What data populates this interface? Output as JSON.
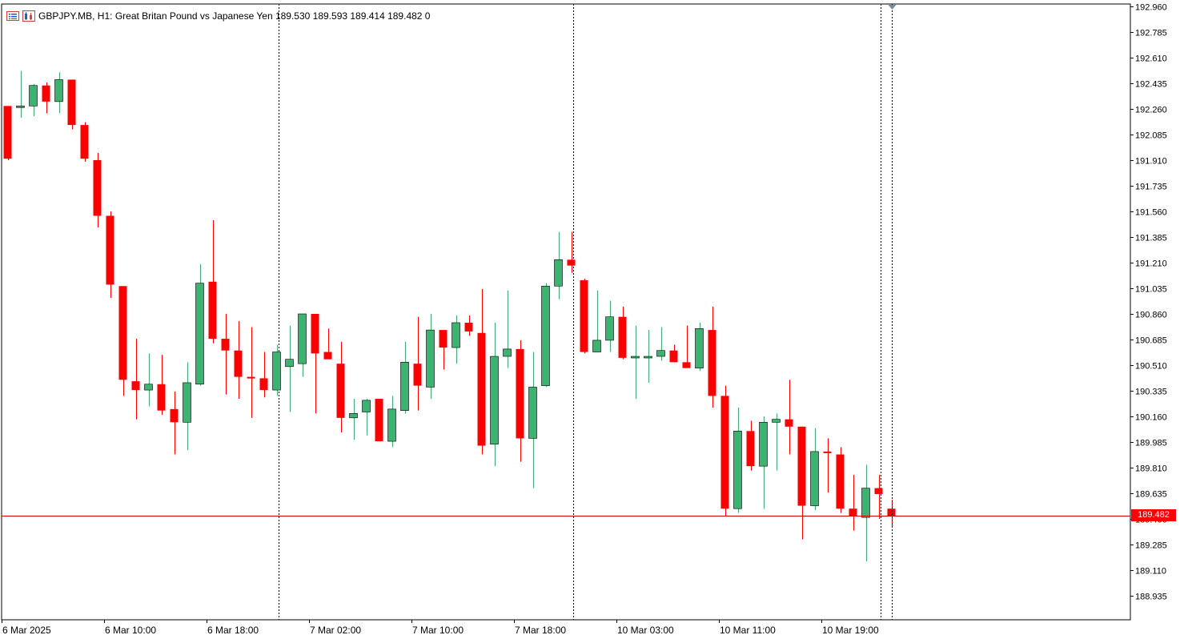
{
  "header": {
    "symbol_line": "GBPJPY.MB, H1:  Great Britan Pound vs Japanese Yen  189.530 189.593 189.414 189.482  0",
    "icons": [
      "list-icon",
      "chart-icon"
    ]
  },
  "current_price": "189.482",
  "colors": {
    "bull": "#3cb371",
    "bear": "#ff0000",
    "price_line": "#cc0000",
    "axis": "#000000"
  },
  "chart_data": {
    "type": "candlestick",
    "symbol": "GBPJPY.MB",
    "timeframe": "H1",
    "ylim": [
      188.85,
      193.0
    ],
    "price_ticks": [
      "192.960",
      "192.785",
      "192.610",
      "192.435",
      "192.260",
      "192.085",
      "191.910",
      "191.735",
      "191.560",
      "191.385",
      "191.210",
      "191.035",
      "190.860",
      "190.685",
      "190.510",
      "190.335",
      "190.160",
      "189.985",
      "189.810",
      "189.635",
      "189.460",
      "189.285",
      "189.110",
      "188.935"
    ],
    "time_labels": [
      "6 Mar 2025",
      "6 Mar 10:00",
      "6 Mar 18:00",
      "7 Mar 02:00",
      "7 Mar 10:00",
      "7 Mar 18:00",
      "10 Mar 03:00",
      "10 Mar 11:00",
      "10 Mar 19:00"
    ],
    "period_separators_after_index": [
      21,
      44,
      68
    ],
    "candles": [
      {
        "o": 192.28,
        "h": 192.28,
        "l": 191.91,
        "c": 191.92
      },
      {
        "o": 192.27,
        "h": 192.52,
        "l": 192.2,
        "c": 192.28
      },
      {
        "o": 192.28,
        "h": 192.43,
        "l": 192.21,
        "c": 192.42
      },
      {
        "o": 192.42,
        "h": 192.44,
        "l": 192.23,
        "c": 192.31
      },
      {
        "o": 192.31,
        "h": 192.51,
        "l": 192.23,
        "c": 192.46
      },
      {
        "o": 192.46,
        "h": 192.46,
        "l": 192.12,
        "c": 192.15
      },
      {
        "o": 192.15,
        "h": 192.17,
        "l": 191.9,
        "c": 191.92
      },
      {
        "o": 191.91,
        "h": 191.96,
        "l": 191.45,
        "c": 191.53
      },
      {
        "o": 191.53,
        "h": 191.56,
        "l": 190.97,
        "c": 191.06
      },
      {
        "o": 191.05,
        "h": 191.05,
        "l": 190.3,
        "c": 190.41
      },
      {
        "o": 190.4,
        "h": 190.69,
        "l": 190.14,
        "c": 190.34
      },
      {
        "o": 190.34,
        "h": 190.59,
        "l": 190.23,
        "c": 190.38
      },
      {
        "o": 190.38,
        "h": 190.58,
        "l": 190.17,
        "c": 190.2
      },
      {
        "o": 190.21,
        "h": 190.33,
        "l": 189.9,
        "c": 190.12
      },
      {
        "o": 190.12,
        "h": 190.53,
        "l": 189.93,
        "c": 190.39
      },
      {
        "o": 190.38,
        "h": 191.2,
        "l": 190.37,
        "c": 191.07
      },
      {
        "o": 191.08,
        "h": 191.5,
        "l": 190.66,
        "c": 190.69
      },
      {
        "o": 190.69,
        "h": 190.86,
        "l": 190.31,
        "c": 190.61
      },
      {
        "o": 190.61,
        "h": 190.81,
        "l": 190.28,
        "c": 190.43
      },
      {
        "o": 190.43,
        "h": 190.77,
        "l": 190.15,
        "c": 190.42
      },
      {
        "o": 190.42,
        "h": 190.6,
        "l": 190.29,
        "c": 190.34
      },
      {
        "o": 190.34,
        "h": 190.65,
        "l": 190.3,
        "c": 190.6
      },
      {
        "o": 190.5,
        "h": 190.78,
        "l": 190.19,
        "c": 190.55
      },
      {
        "o": 190.52,
        "h": 190.86,
        "l": 190.43,
        "c": 190.86
      },
      {
        "o": 190.86,
        "h": 190.86,
        "l": 190.18,
        "c": 190.59
      },
      {
        "o": 190.6,
        "h": 190.76,
        "l": 190.55,
        "c": 190.55
      },
      {
        "o": 190.52,
        "h": 190.67,
        "l": 190.05,
        "c": 190.15
      },
      {
        "o": 190.15,
        "h": 190.28,
        "l": 190.0,
        "c": 190.18
      },
      {
        "o": 190.19,
        "h": 190.28,
        "l": 190.03,
        "c": 190.27
      },
      {
        "o": 190.28,
        "h": 190.28,
        "l": 189.99,
        "c": 189.99
      },
      {
        "o": 189.99,
        "h": 190.3,
        "l": 189.95,
        "c": 190.21
      },
      {
        "o": 190.2,
        "h": 190.67,
        "l": 190.18,
        "c": 190.53
      },
      {
        "o": 190.52,
        "h": 190.84,
        "l": 190.2,
        "c": 190.37
      },
      {
        "o": 190.36,
        "h": 190.86,
        "l": 190.28,
        "c": 190.75
      },
      {
        "o": 190.75,
        "h": 190.75,
        "l": 190.48,
        "c": 190.63
      },
      {
        "o": 190.63,
        "h": 190.85,
        "l": 190.52,
        "c": 190.8
      },
      {
        "o": 190.8,
        "h": 190.85,
        "l": 190.71,
        "c": 190.74
      },
      {
        "o": 190.73,
        "h": 191.03,
        "l": 189.9,
        "c": 189.96
      },
      {
        "o": 189.97,
        "h": 190.8,
        "l": 189.82,
        "c": 190.57
      },
      {
        "o": 190.57,
        "h": 191.02,
        "l": 190.49,
        "c": 190.62
      },
      {
        "o": 190.62,
        "h": 190.68,
        "l": 189.85,
        "c": 190.01
      },
      {
        "o": 190.01,
        "h": 190.6,
        "l": 189.67,
        "c": 190.36
      },
      {
        "o": 190.37,
        "h": 191.07,
        "l": 190.36,
        "c": 191.05
      },
      {
        "o": 191.05,
        "h": 191.42,
        "l": 190.96,
        "c": 191.23
      },
      {
        "o": 191.23,
        "h": 191.42,
        "l": 191.14,
        "c": 191.19
      },
      {
        "o": 191.09,
        "h": 191.1,
        "l": 190.59,
        "c": 190.6
      },
      {
        "o": 190.6,
        "h": 191.02,
        "l": 190.6,
        "c": 190.68
      },
      {
        "o": 190.68,
        "h": 190.95,
        "l": 190.6,
        "c": 190.84
      },
      {
        "o": 190.84,
        "h": 190.91,
        "l": 190.55,
        "c": 190.56
      },
      {
        "o": 190.56,
        "h": 190.78,
        "l": 190.28,
        "c": 190.57
      },
      {
        "o": 190.57,
        "h": 190.75,
        "l": 190.39,
        "c": 190.57
      },
      {
        "o": 190.57,
        "h": 190.77,
        "l": 190.54,
        "c": 190.61
      },
      {
        "o": 190.61,
        "h": 190.65,
        "l": 190.53,
        "c": 190.53
      },
      {
        "o": 190.53,
        "h": 190.78,
        "l": 190.49,
        "c": 190.49
      },
      {
        "o": 190.49,
        "h": 190.8,
        "l": 190.47,
        "c": 190.76
      },
      {
        "o": 190.75,
        "h": 190.91,
        "l": 190.22,
        "c": 190.3
      },
      {
        "o": 190.3,
        "h": 190.37,
        "l": 189.48,
        "c": 189.53
      },
      {
        "o": 189.53,
        "h": 190.22,
        "l": 189.5,
        "c": 190.06
      },
      {
        "o": 190.06,
        "h": 190.13,
        "l": 189.79,
        "c": 189.82
      },
      {
        "o": 189.82,
        "h": 190.16,
        "l": 189.53,
        "c": 190.12
      },
      {
        "o": 190.12,
        "h": 190.18,
        "l": 189.79,
        "c": 190.14
      },
      {
        "o": 190.14,
        "h": 190.41,
        "l": 189.9,
        "c": 190.09
      },
      {
        "o": 190.09,
        "h": 190.09,
        "l": 189.32,
        "c": 189.55
      },
      {
        "o": 189.55,
        "h": 190.08,
        "l": 189.52,
        "c": 189.92
      },
      {
        "o": 189.92,
        "h": 190.01,
        "l": 189.64,
        "c": 189.91
      },
      {
        "o": 189.9,
        "h": 189.95,
        "l": 189.5,
        "c": 189.53
      },
      {
        "o": 189.53,
        "h": 189.76,
        "l": 189.38,
        "c": 189.48
      },
      {
        "o": 189.47,
        "h": 189.83,
        "l": 189.17,
        "c": 189.67
      },
      {
        "o": 189.67,
        "h": 189.76,
        "l": 189.46,
        "c": 189.63
      },
      {
        "o": 189.53,
        "h": 189.59,
        "l": 189.41,
        "c": 189.48
      }
    ]
  }
}
